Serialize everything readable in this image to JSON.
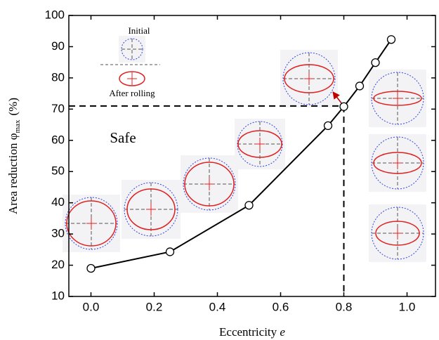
{
  "chart_data": {
    "type": "line",
    "x_label": "Eccentricity",
    "x_label_symbol": "e",
    "y_label": "Area reduction φ",
    "y_label_sub": "max",
    "y_label_unit": "(%)",
    "annotations": {
      "safe": "Safe",
      "initial": "Initial",
      "after": "After rolling"
    },
    "series": [
      {
        "color": "#000000",
        "x": [
          0,
          0.25,
          0.5,
          0.75,
          0.8,
          0.85,
          0.9,
          0.95
        ],
        "values": [
          19,
          24.3,
          39.2,
          64.7,
          70.8,
          77.4,
          84.9,
          92.3
        ]
      }
    ],
    "reference": {
      "x": 0.8,
      "y": 71
    },
    "xlim": [
      -0.07,
      1.09
    ],
    "xticks": [
      {
        "value": 0,
        "label": "0.0"
      },
      0.2,
      0.4,
      0.6,
      0.8,
      {
        "value": 1,
        "label": "1.0"
      }
    ],
    "ylim": [
      10,
      100
    ],
    "yticks": [
      10,
      20,
      30,
      40,
      50,
      60,
      70,
      80,
      90,
      100
    ]
  }
}
